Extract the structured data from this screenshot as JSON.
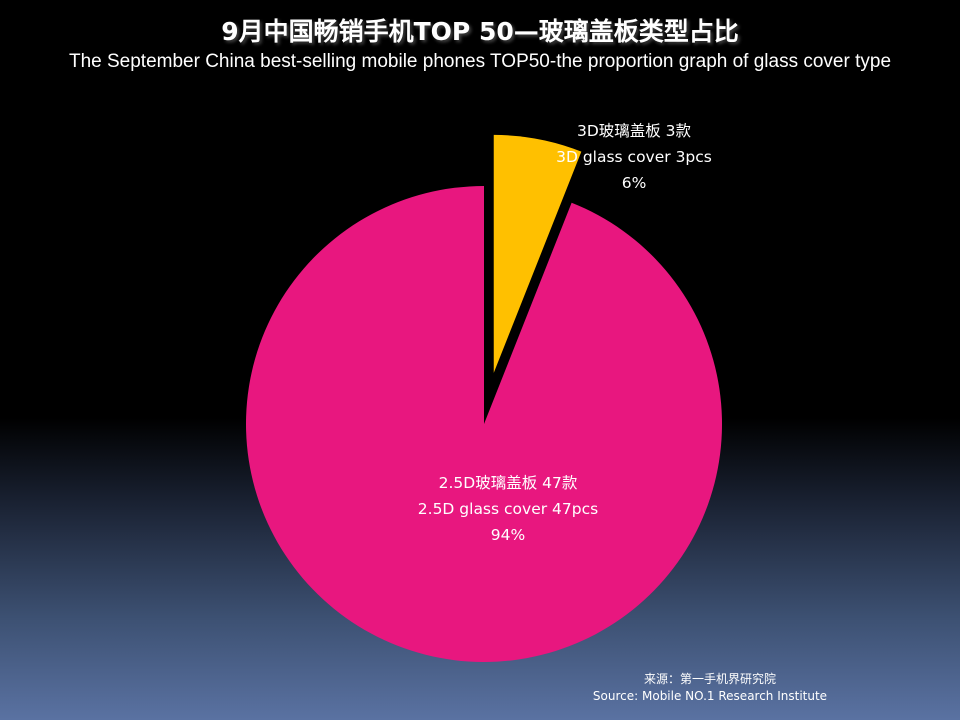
{
  "title": "9月中国畅销手机TOP 50—玻璃盖板类型占比",
  "subtitle": "The September China best-selling mobile phones TOP50-the proportion graph of glass cover type",
  "chart_data": {
    "type": "pie",
    "slices": [
      {
        "name": "3D玻璃盖板",
        "value": 3,
        "percent": 6,
        "color": "#FFC000",
        "exploded": true,
        "label_lines": [
          "3D玻璃盖板 3款",
          "3D glass cover 3pcs",
          "6%"
        ]
      },
      {
        "name": "2.5D玻璃盖板",
        "value": 47,
        "percent": 94,
        "color": "#E8177F",
        "exploded": false,
        "label_lines": [
          "2.5D玻璃盖板 47款",
          "2.5D glass cover 47pcs",
          "94%"
        ]
      }
    ]
  },
  "source": {
    "line1": "来源：第一手机界研究院",
    "line2": "Source: Mobile NO.1 Research Institute"
  }
}
